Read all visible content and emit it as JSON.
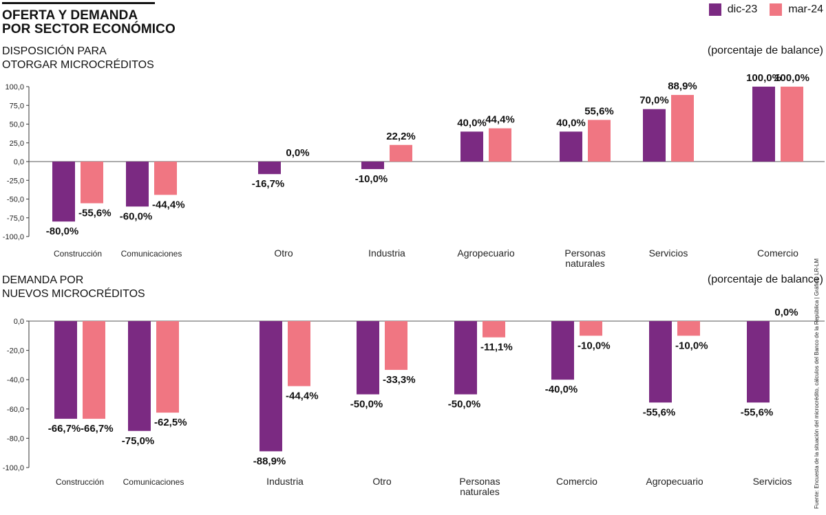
{
  "header": {
    "title_line1": "OFERTA Y DEMANDA",
    "title_line2": "POR SECTOR ECONÓMICO"
  },
  "legend": {
    "items": [
      {
        "name": "dic-23",
        "color": "#7b2a82"
      },
      {
        "name": "mar-24",
        "color": "#f07682"
      }
    ]
  },
  "source": "Fuente: Encuesta de la situación del microcrédito, cálculos del Banco de la República | Gráfico: LR-LM",
  "chart_data": [
    {
      "type": "bar",
      "title_line1": "DISPOSICIÓN PARA",
      "title_line2": "OTORGAR MICROCRÉDITOS",
      "units": "(porcentaje de balance)",
      "categories": [
        "Construcción",
        "Comunicaciones",
        "Otro",
        "Industria",
        "Agropecuario",
        "Personas naturales",
        "Servicios",
        "Comercio"
      ],
      "series": [
        {
          "name": "dic-23",
          "color": "#7b2a82",
          "values": [
            -80.0,
            -60.0,
            -16.7,
            -10.0,
            40.0,
            40.0,
            70.0,
            100.0
          ],
          "labels": [
            "-80,0%",
            "-60,0%",
            "-16,7%",
            "-10,0%",
            "40,0%",
            "40,0%",
            "70,0%",
            "100,0%"
          ]
        },
        {
          "name": "mar-24",
          "color": "#f07682",
          "values": [
            -55.6,
            -44.4,
            0.0,
            22.2,
            44.4,
            55.6,
            88.9,
            100.0
          ],
          "labels": [
            "-55,6%",
            "-44,4%",
            "0,0%",
            "22,2%",
            "44,4%",
            "55,6%",
            "88,9%",
            "100,0%"
          ]
        }
      ],
      "ylim": [
        -100,
        100
      ],
      "yticks": [
        100,
        75,
        50,
        25,
        0,
        -25,
        -50,
        -75,
        -100
      ],
      "yticklabels": [
        "100,0",
        "75,0",
        "50,0",
        "25,0",
        "0,0",
        "-25,0",
        "-50,0",
        "-75,0",
        "-100,0"
      ]
    },
    {
      "type": "bar",
      "title_line1": "DEMANDA POR",
      "title_line2": "NUEVOS MICROCRÉDITOS",
      "units": "(porcentaje de balance)",
      "categories": [
        "Construcción",
        "Comunicaciones",
        "Industria",
        "Otro",
        "Personas naturales",
        "Comercio",
        "Agropecuario",
        "Servicios"
      ],
      "series": [
        {
          "name": "dic-23",
          "color": "#7b2a82",
          "values": [
            -66.7,
            -75.0,
            -88.9,
            -50.0,
            -50.0,
            -40.0,
            -55.6,
            -55.6
          ],
          "labels": [
            "-66,7%",
            "-75,0%",
            "-88,9%",
            "-50,0%",
            "-50,0%",
            "-40,0%",
            "-55,6%",
            "-55,6%"
          ]
        },
        {
          "name": "mar-24",
          "color": "#f07682",
          "values": [
            -66.7,
            -62.5,
            -44.4,
            -33.3,
            -11.1,
            -10.0,
            -10.0,
            0.0
          ],
          "labels": [
            "-66,7%",
            "-62,5%",
            "-44,4%",
            "-33,3%",
            "-11,1%",
            "-10,0%",
            "-10,0%",
            "0,0%"
          ]
        }
      ],
      "ylim": [
        -100,
        0
      ],
      "yticks": [
        0,
        -20,
        -40,
        -60,
        -80,
        -100
      ],
      "yticklabels": [
        "0,0",
        "-20,0",
        "-40,0",
        "-60,0",
        "-80,0",
        "-100,0"
      ]
    }
  ]
}
